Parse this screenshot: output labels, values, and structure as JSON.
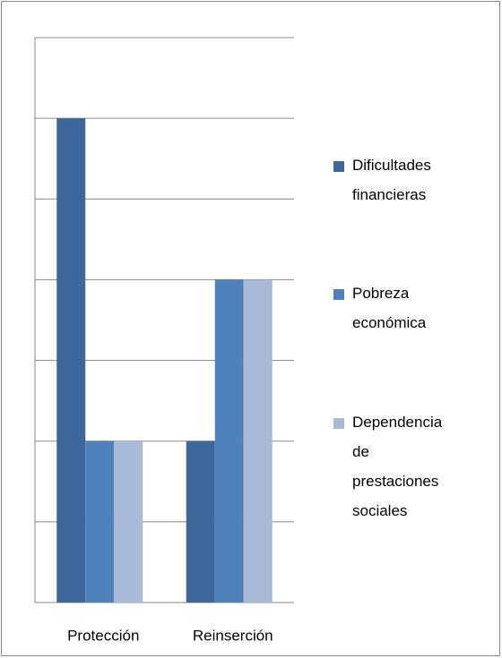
{
  "chart_data": {
    "type": "bar",
    "categories": [
      "Protección",
      "Reinserción"
    ],
    "series": [
      {
        "name": "Dificultades financieras",
        "color": "#3e679b",
        "values": [
          6,
          2
        ]
      },
      {
        "name": "Pobreza económica",
        "color": "#4f81bd",
        "values": [
          2,
          4
        ]
      },
      {
        "name": "Dependencia de prestaciones sociales",
        "color": "#a9b9d8",
        "values": [
          2,
          4
        ]
      }
    ],
    "ylim": [
      0,
      7
    ],
    "yticks": [
      0,
      1,
      2,
      3,
      4,
      5,
      6,
      7
    ],
    "grid": true,
    "legend": "right"
  }
}
